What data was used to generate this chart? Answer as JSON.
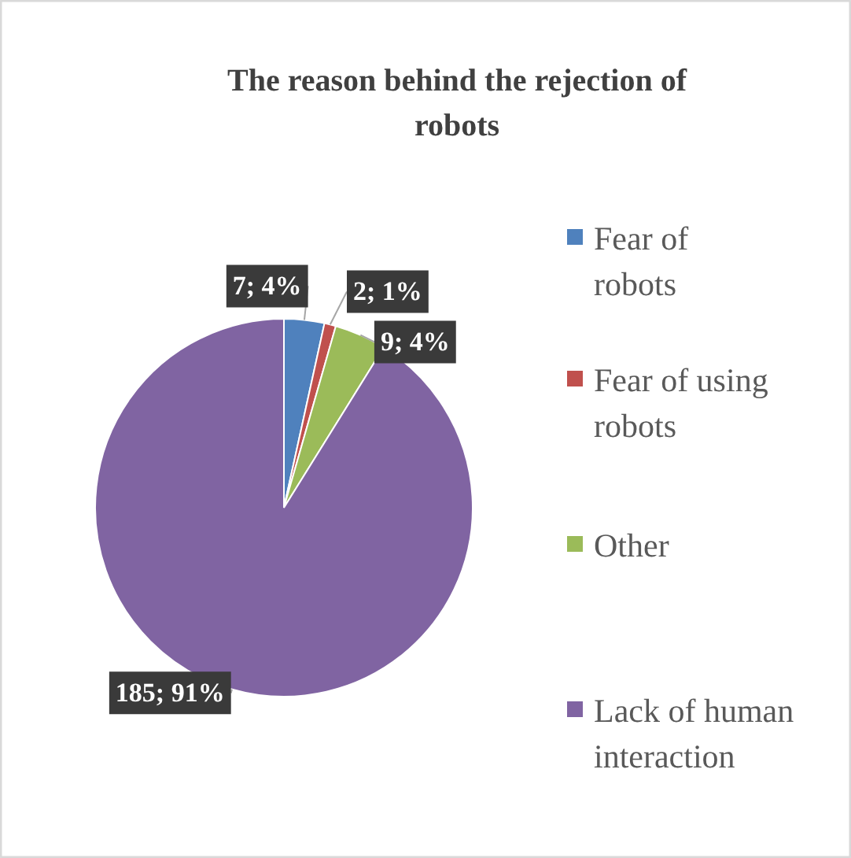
{
  "chart_data": {
    "type": "pie",
    "title": "The reason behind the rejection of robots",
    "categories": [
      "Fear of robots",
      "Fear of using robots",
      "Other",
      "Lack of human interaction"
    ],
    "values": [
      7,
      2,
      9,
      185
    ],
    "colors": [
      "#4f81bd",
      "#c0504d",
      "#9bbb59",
      "#8064a2"
    ],
    "value_labels": [
      "7; 4%",
      "2; 1%",
      "9; 4%",
      "185; 91%"
    ],
    "legend": "right"
  }
}
